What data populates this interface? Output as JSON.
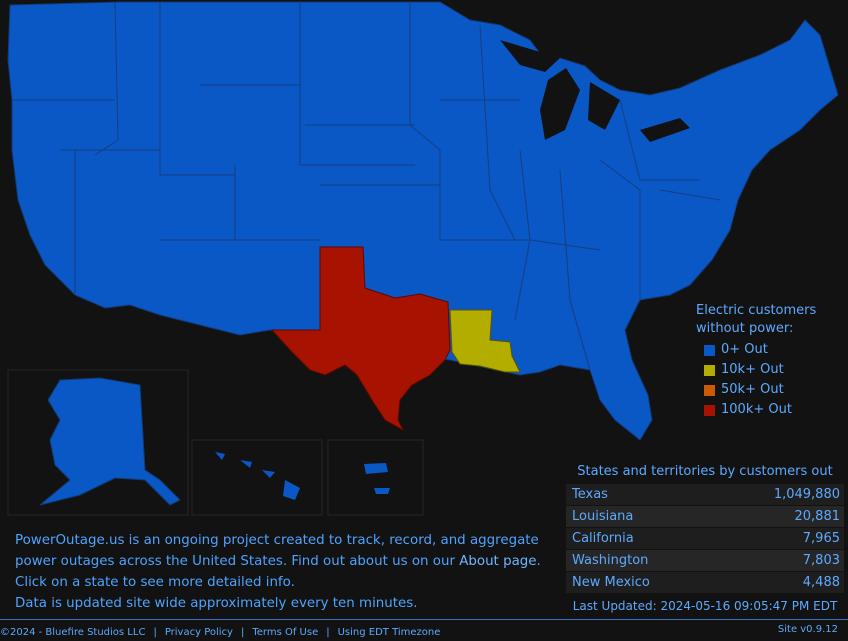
{
  "colors": {
    "background": "#121212",
    "tier_0": "#0a57c6",
    "tier_10k": "#b3ad00",
    "tier_50k": "#cc5a00",
    "tier_100k": "#a81200",
    "text": "#5ea9ff"
  },
  "map": {
    "states": [
      {
        "name": "Texas",
        "tier": "100k+"
      },
      {
        "name": "Louisiana",
        "tier": "10k+"
      },
      {
        "name": "California",
        "tier": "0+"
      },
      {
        "name": "Washington",
        "tier": "0+"
      },
      {
        "name": "New Mexico",
        "tier": "0+"
      },
      {
        "name": "Alaska",
        "tier": "0+"
      },
      {
        "name": "Hawaii",
        "tier": "0+"
      },
      {
        "name": "Puerto Rico",
        "tier": "0+"
      }
    ]
  },
  "legend": {
    "title_line1": "Electric customers",
    "title_line2": "without power:",
    "items": [
      {
        "label": "0+ Out",
        "color": "#0a57c6"
      },
      {
        "label": "10k+ Out",
        "color": "#b3ad00"
      },
      {
        "label": "50k+ Out",
        "color": "#cc5a00"
      },
      {
        "label": "100k+ Out",
        "color": "#a81200"
      }
    ]
  },
  "table": {
    "title": "States and territories by customers out",
    "rows": [
      {
        "state": "Texas",
        "out": "1,049,880"
      },
      {
        "state": "Louisiana",
        "out": "20,881"
      },
      {
        "state": "California",
        "out": "7,965"
      },
      {
        "state": "Washington",
        "out": "7,803"
      },
      {
        "state": "New Mexico",
        "out": "4,488"
      }
    ],
    "last_updated": "Last Updated: 2024-05-16 09:05:47 PM EDT"
  },
  "about": {
    "line1": "PowerOutage.us is an ongoing project created to track, record, and aggregate",
    "line2a": "power outages across the United States. Find out about us on our ",
    "line2_link": "About page",
    "line2b": ".",
    "line3": "Click on a state to see more detailed info.",
    "line4": "Data is updated site wide approximately every ten minutes."
  },
  "footer": {
    "copyright": "©2024 - Bluefire Studios LLC",
    "privacy": "Privacy Policy",
    "terms": "Terms Of Use",
    "timezone": "Using EDT Timezone",
    "version": "Site v0.9.12"
  }
}
